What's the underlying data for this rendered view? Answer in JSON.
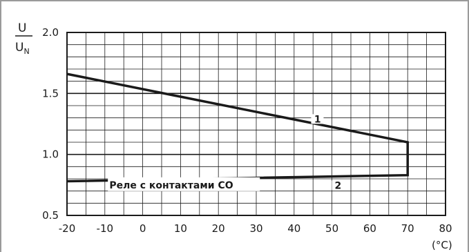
{
  "chart_data": {
    "type": "line",
    "ylabel": {
      "numerator": "U",
      "denominator": "U",
      "denominator_sub": "N"
    },
    "xlabel": "(°C)",
    "xlim": [
      -20,
      80
    ],
    "ylim": [
      0.5,
      2.0
    ],
    "x_ticks": [
      -20,
      -10,
      0,
      10,
      20,
      30,
      40,
      50,
      60,
      70,
      80
    ],
    "x_tick_labels": [
      "-20",
      "-10",
      "0",
      "10",
      "20",
      "30",
      "40",
      "50",
      "60",
      "70",
      "80"
    ],
    "y_ticks": [
      0.5,
      1.0,
      1.5,
      2.0
    ],
    "y_tick_labels": [
      "0.5",
      "1.0",
      "1.5",
      "2.0"
    ],
    "grid": true,
    "series": [
      {
        "name": "1",
        "x": [
          -20,
          70,
          70
        ],
        "y": [
          1.66,
          1.1,
          1.0
        ]
      },
      {
        "name": "2",
        "x": [
          -20,
          70,
          70
        ],
        "y": [
          0.78,
          0.83,
          1.0
        ]
      }
    ],
    "annotation": "Реле с контактами CO"
  }
}
